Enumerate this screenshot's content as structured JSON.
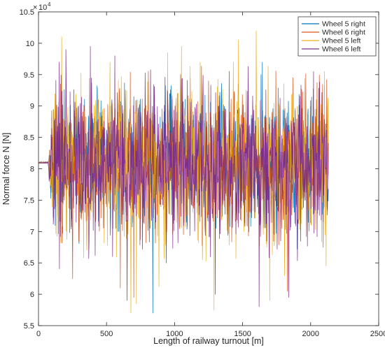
{
  "chart_data": {
    "type": "line",
    "title": "",
    "xlabel": "Length of railway turnout [m]",
    "ylabel": "Normal force N [N]",
    "xlim": [
      0,
      2500
    ],
    "ylim": [
      55000,
      105000
    ],
    "x_ticks": [
      0,
      500,
      1000,
      1500,
      2000,
      2500
    ],
    "x_tick_labels": [
      "0",
      "500",
      "1000",
      "1500",
      "2000",
      "2500"
    ],
    "y_ticks": [
      55000,
      60000,
      65000,
      70000,
      75000,
      80000,
      85000,
      90000,
      95000,
      100000,
      105000
    ],
    "y_tick_labels": [
      "5.5",
      "6",
      "6.5",
      "7",
      "7.5",
      "8",
      "8.5",
      "9",
      "9.5",
      "10",
      "10.5"
    ],
    "y_exponent_label": {
      "base": "10",
      "exp": "4"
    },
    "grid": false,
    "legend_position": "top-right",
    "x_range_data": [
      0,
      2130
    ],
    "static_force": 81000,
    "series": [
      {
        "name": "Wheel 5 right",
        "color": "#0072BD",
        "noise_amp": 5200,
        "seed": 11,
        "peaks": [
          [
            840,
            57000
          ],
          [
            820,
            70500
          ],
          [
            700,
            91500
          ],
          [
            400,
            88000
          ],
          [
            1560,
            70800
          ]
        ]
      },
      {
        "name": "Wheel 6 right",
        "color": "#D95319",
        "noise_amp": 5600,
        "seed": 23,
        "peaks": [
          [
            250,
            62500
          ],
          [
            600,
            61000
          ],
          [
            700,
            59500
          ],
          [
            640,
            92500
          ],
          [
            1250,
            94000
          ],
          [
            1400,
            95000
          ],
          [
            1830,
            60500
          ],
          [
            1870,
            94500
          ]
        ]
      },
      {
        "name": "Wheel 5 left",
        "color": "#EDB120",
        "noise_amp": 6500,
        "seed": 37,
        "peaks": [
          [
            170,
            101000
          ],
          [
            680,
            57000
          ],
          [
            1290,
            57500
          ],
          [
            1600,
            102000
          ],
          [
            1470,
            100500
          ],
          [
            950,
            98500
          ],
          [
            1700,
            59000
          ],
          [
            1050,
            99500
          ],
          [
            720,
            58500
          ]
        ]
      },
      {
        "name": "Wheel 6 left",
        "color": "#7E2F8E",
        "noise_amp": 6200,
        "seed": 53,
        "peaks": [
          [
            380,
            99500
          ],
          [
            200,
            99000
          ],
          [
            650,
            59000
          ],
          [
            1620,
            58000
          ],
          [
            1840,
            59500
          ],
          [
            1300,
            60000
          ],
          [
            560,
            98000
          ],
          [
            2020,
            95500
          ]
        ]
      }
    ]
  }
}
